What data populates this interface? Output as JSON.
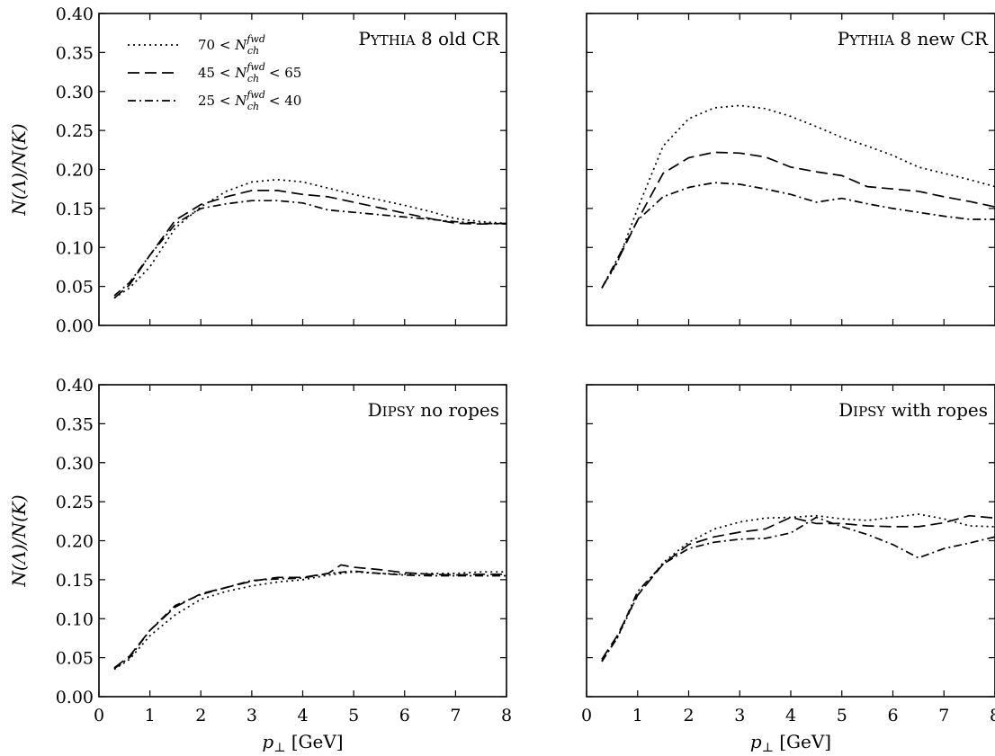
{
  "chart_data": [
    {
      "type": "line",
      "title": "PYTHIA 8 old CR",
      "title_main": "P",
      "title_caps": "YTHIA",
      "title_rest": " 8 old CR",
      "xlabel": "",
      "ylabel": "N(Λ)/N(K)",
      "xlim": [
        0,
        8
      ],
      "ylim": [
        0,
        0.4
      ],
      "legend": "top-left",
      "series": [
        {
          "name": "70 < N_ch^fwd",
          "style": "dotted",
          "x": [
            0.3,
            0.6,
            1.0,
            1.5,
            2.0,
            2.5,
            3.0,
            3.5,
            4.0,
            4.5,
            5.0,
            5.5,
            6.0,
            6.5,
            7.0,
            7.5,
            8.0
          ],
          "y": [
            0.035,
            0.048,
            0.075,
            0.125,
            0.152,
            0.172,
            0.184,
            0.187,
            0.184,
            0.176,
            0.168,
            0.161,
            0.154,
            0.146,
            0.137,
            0.133,
            0.131
          ]
        },
        {
          "name": "45 < N_ch^fwd < 65",
          "style": "dashed",
          "x": [
            0.3,
            0.6,
            1.0,
            1.5,
            2.0,
            2.5,
            3.0,
            3.5,
            4.0,
            4.5,
            5.0,
            5.5,
            6.0,
            6.5,
            7.0,
            7.5,
            8.0
          ],
          "y": [
            0.035,
            0.052,
            0.09,
            0.135,
            0.155,
            0.165,
            0.173,
            0.173,
            0.168,
            0.165,
            0.158,
            0.151,
            0.144,
            0.137,
            0.131,
            0.13,
            0.131
          ]
        },
        {
          "name": "25 < N_ch^fwd < 40",
          "style": "dashdot",
          "x": [
            0.3,
            0.6,
            1.0,
            1.5,
            2.0,
            2.5,
            3.0,
            3.5,
            4.0,
            4.5,
            5.0,
            5.5,
            6.0,
            6.5,
            7.0,
            7.5,
            8.0
          ],
          "y": [
            0.038,
            0.055,
            0.09,
            0.13,
            0.15,
            0.156,
            0.16,
            0.16,
            0.157,
            0.148,
            0.145,
            0.142,
            0.139,
            0.136,
            0.133,
            0.131,
            0.13
          ]
        }
      ]
    },
    {
      "type": "line",
      "title": "PYTHIA 8 new CR",
      "title_main": "P",
      "title_caps": "YTHIA",
      "title_rest": " 8 new CR",
      "xlabel": "",
      "ylabel": "",
      "xlim": [
        0,
        8
      ],
      "ylim": [
        0,
        0.4
      ],
      "series": [
        {
          "name": "70 < N_ch^fwd",
          "style": "dotted",
          "x": [
            0.3,
            0.6,
            1.0,
            1.5,
            2.0,
            2.5,
            3.0,
            3.5,
            4.0,
            4.5,
            5.0,
            5.5,
            6.0,
            6.5,
            7.0,
            7.5,
            8.0
          ],
          "y": [
            0.048,
            0.08,
            0.15,
            0.23,
            0.265,
            0.279,
            0.282,
            0.278,
            0.268,
            0.255,
            0.241,
            0.23,
            0.218,
            0.203,
            0.195,
            0.187,
            0.178
          ]
        },
        {
          "name": "45 < N_ch^fwd < 65",
          "style": "dashed",
          "x": [
            0.3,
            0.6,
            1.0,
            1.5,
            2.0,
            2.5,
            3.0,
            3.5,
            4.0,
            4.5,
            5.0,
            5.5,
            6.0,
            6.5,
            7.0,
            7.5,
            8.0
          ],
          "y": [
            0.048,
            0.082,
            0.135,
            0.195,
            0.215,
            0.222,
            0.221,
            0.216,
            0.203,
            0.197,
            0.192,
            0.178,
            0.175,
            0.172,
            0.165,
            0.159,
            0.152
          ]
        },
        {
          "name": "25 < N_ch^fwd < 40",
          "style": "dashdot",
          "x": [
            0.3,
            0.6,
            1.0,
            1.5,
            2.0,
            2.5,
            3.0,
            3.5,
            4.0,
            4.5,
            5.0,
            5.5,
            6.0,
            6.5,
            7.0,
            7.5,
            8.0
          ],
          "y": [
            0.048,
            0.085,
            0.135,
            0.165,
            0.177,
            0.183,
            0.181,
            0.175,
            0.168,
            0.158,
            0.163,
            0.156,
            0.15,
            0.145,
            0.14,
            0.136,
            0.136
          ]
        }
      ]
    },
    {
      "type": "line",
      "title": "DIPSY no ropes",
      "title_main": "D",
      "title_caps": "IPSY",
      "title_rest": " no ropes",
      "xlabel": "p⊥ [GeV]",
      "ylabel": "N(Λ)/N(K)",
      "xlim": [
        0,
        8
      ],
      "ylim": [
        0,
        0.4
      ],
      "series": [
        {
          "name": "70 < N_ch^fwd",
          "style": "dotted",
          "x": [
            0.3,
            0.6,
            1.0,
            1.5,
            2.0,
            2.5,
            3.0,
            3.5,
            4.0,
            4.5,
            5.0,
            5.5,
            6.0,
            6.5,
            7.0,
            7.5,
            8.0
          ],
          "y": [
            0.035,
            0.048,
            0.078,
            0.105,
            0.125,
            0.135,
            0.142,
            0.147,
            0.15,
            0.156,
            0.16,
            0.158,
            0.157,
            0.158,
            0.158,
            0.16,
            0.16
          ]
        },
        {
          "name": "45 < N_ch^fwd < 65",
          "style": "dashed",
          "x": [
            0.3,
            0.6,
            1.0,
            1.5,
            2.0,
            2.5,
            3.0,
            3.5,
            4.0,
            4.5,
            4.75,
            5.0,
            5.5,
            6.0,
            6.5,
            7.0,
            7.5,
            8.0
          ],
          "y": [
            0.037,
            0.052,
            0.085,
            0.115,
            0.132,
            0.14,
            0.148,
            0.153,
            0.153,
            0.158,
            0.169,
            0.166,
            0.163,
            0.159,
            0.157,
            0.156,
            0.157,
            0.157
          ]
        },
        {
          "name": "25 < N_ch^fwd < 40",
          "style": "dashdot",
          "x": [
            0.3,
            0.6,
            1.0,
            1.5,
            2.0,
            2.5,
            3.0,
            3.5,
            4.0,
            4.5,
            5.0,
            5.5,
            6.0,
            6.5,
            7.0,
            7.5,
            8.0
          ],
          "y": [
            0.036,
            0.05,
            0.085,
            0.117,
            0.131,
            0.14,
            0.149,
            0.151,
            0.152,
            0.158,
            0.161,
            0.158,
            0.156,
            0.155,
            0.155,
            0.155,
            0.155
          ]
        }
      ]
    },
    {
      "type": "line",
      "title": "DIPSY with ropes",
      "title_main": "D",
      "title_caps": "IPSY",
      "title_rest": " with ropes",
      "xlabel": "p⊥ [GeV]",
      "ylabel": "",
      "xlim": [
        0,
        8
      ],
      "ylim": [
        0,
        0.4
      ],
      "series": [
        {
          "name": "70 < N_ch^fwd",
          "style": "dotted",
          "x": [
            0.3,
            0.6,
            1.0,
            1.5,
            2.0,
            2.5,
            3.0,
            3.5,
            4.0,
            4.5,
            5.0,
            5.5,
            6.0,
            6.5,
            7.0,
            7.5,
            8.0
          ],
          "y": [
            0.046,
            0.075,
            0.13,
            0.172,
            0.198,
            0.215,
            0.224,
            0.229,
            0.23,
            0.232,
            0.228,
            0.226,
            0.23,
            0.234,
            0.228,
            0.219,
            0.218
          ]
        },
        {
          "name": "45 < N_ch^fwd < 65",
          "style": "dashed",
          "x": [
            0.3,
            0.6,
            1.0,
            1.5,
            2.0,
            2.5,
            3.0,
            3.5,
            4.0,
            4.5,
            5.0,
            5.5,
            6.0,
            6.5,
            7.0,
            7.5,
            8.0
          ],
          "y": [
            0.048,
            0.078,
            0.13,
            0.17,
            0.195,
            0.205,
            0.211,
            0.215,
            0.23,
            0.222,
            0.222,
            0.219,
            0.218,
            0.218,
            0.223,
            0.232,
            0.229
          ]
        },
        {
          "name": "25 < N_ch^fwd < 40",
          "style": "dashdot",
          "x": [
            0.3,
            0.6,
            1.0,
            1.5,
            2.0,
            2.5,
            3.0,
            3.5,
            4.0,
            4.5,
            5.0,
            5.5,
            6.0,
            6.5,
            7.0,
            7.5,
            8.0
          ],
          "y": [
            0.045,
            0.075,
            0.135,
            0.17,
            0.19,
            0.198,
            0.202,
            0.203,
            0.21,
            0.23,
            0.218,
            0.208,
            0.195,
            0.178,
            0.19,
            0.197,
            0.205
          ]
        }
      ]
    }
  ],
  "axes": {
    "x_ticks": [
      "0",
      "1",
      "2",
      "3",
      "4",
      "5",
      "6",
      "7",
      "8"
    ],
    "y_ticks": [
      "0.00",
      "0.05",
      "0.10",
      "0.15",
      "0.20",
      "0.25",
      "0.30",
      "0.35",
      "0.40"
    ],
    "ylabel": "N(Λ)/N(K)",
    "xlabel_sym": "p",
    "xlabel_sub": "⊥",
    "xlabel_unit": " [GeV]"
  },
  "legend": {
    "entries": [
      {
        "style": "dotted",
        "left": "70 < ",
        "sym": "N",
        "sub": "ch",
        "sup": "fwd",
        "right": ""
      },
      {
        "style": "dashed",
        "left": "45 < ",
        "sym": "N",
        "sub": "ch",
        "sup": "fwd",
        "right": " < 65"
      },
      {
        "style": "dashdot",
        "left": "25 < ",
        "sym": "N",
        "sub": "ch",
        "sup": "fwd",
        "right": " < 40"
      }
    ]
  },
  "styles": {
    "line_color": "#000000",
    "dash": {
      "dotted": "2,4",
      "dashed": "13,6",
      "dashdot": "9,4,2,4"
    }
  }
}
